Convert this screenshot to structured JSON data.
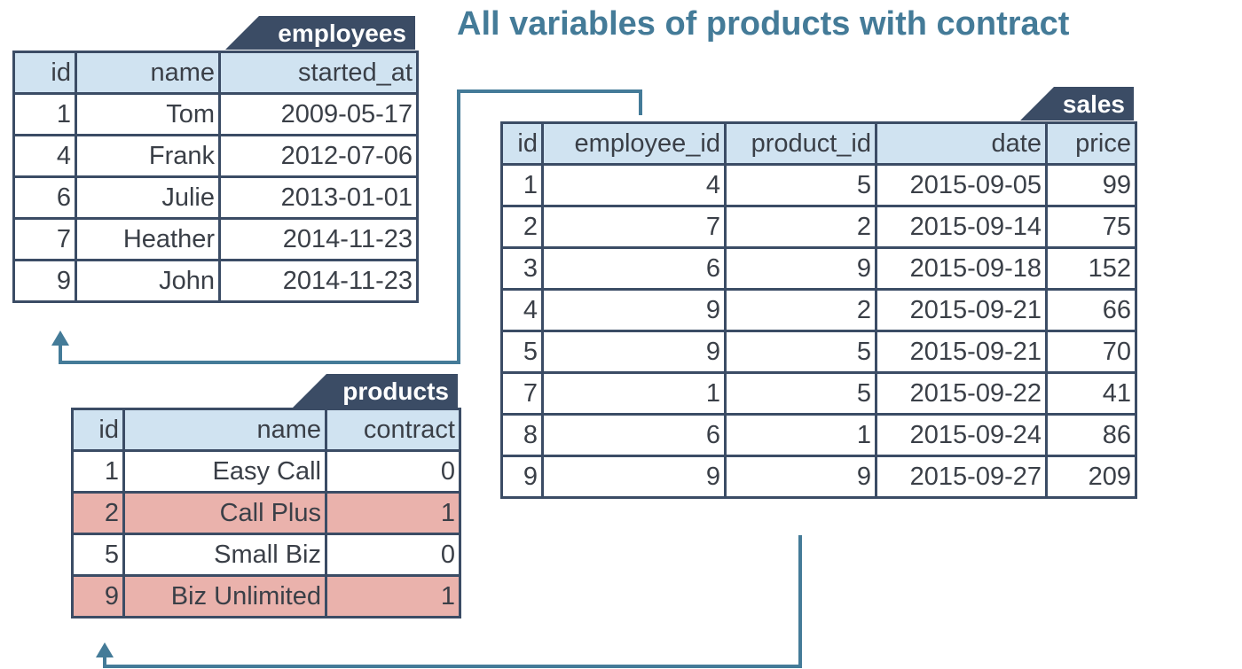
{
  "title": "All variables of products with contract",
  "colors": {
    "title": "#447b98",
    "header_fill": "#d0e3f1",
    "border": "#3b4c65",
    "highlight": "#eab2ac",
    "connector": "#447b98"
  },
  "employees": {
    "name": "employees",
    "columns": [
      "id",
      "name",
      "started_at"
    ],
    "rows": [
      [
        "1",
        "Tom",
        "2009-05-17"
      ],
      [
        "4",
        "Frank",
        "2012-07-06"
      ],
      [
        "6",
        "Julie",
        "2013-01-01"
      ],
      [
        "7",
        "Heather",
        "2014-11-23"
      ],
      [
        "9",
        "John",
        "2014-11-23"
      ]
    ]
  },
  "sales": {
    "name": "sales",
    "columns": [
      "id",
      "employee_id",
      "product_id",
      "date",
      "price"
    ],
    "rows": [
      [
        "1",
        "4",
        "5",
        "2015-09-05",
        "99"
      ],
      [
        "2",
        "7",
        "2",
        "2015-09-14",
        "75"
      ],
      [
        "3",
        "6",
        "9",
        "2015-09-18",
        "152"
      ],
      [
        "4",
        "9",
        "2",
        "2015-09-21",
        "66"
      ],
      [
        "5",
        "9",
        "5",
        "2015-09-21",
        "70"
      ],
      [
        "7",
        "1",
        "5",
        "2015-09-22",
        "41"
      ],
      [
        "8",
        "6",
        "1",
        "2015-09-24",
        "86"
      ],
      [
        "9",
        "9",
        "9",
        "2015-09-27",
        "209"
      ]
    ]
  },
  "products": {
    "name": "products",
    "columns": [
      "id",
      "name",
      "contract"
    ],
    "rows": [
      [
        "1",
        "Easy Call",
        "0"
      ],
      [
        "2",
        "Call Plus",
        "1"
      ],
      [
        "5",
        "Small Biz",
        "0"
      ],
      [
        "9",
        "Biz Unlimited",
        "1"
      ]
    ],
    "highlighted_rows": [
      1,
      3
    ]
  }
}
